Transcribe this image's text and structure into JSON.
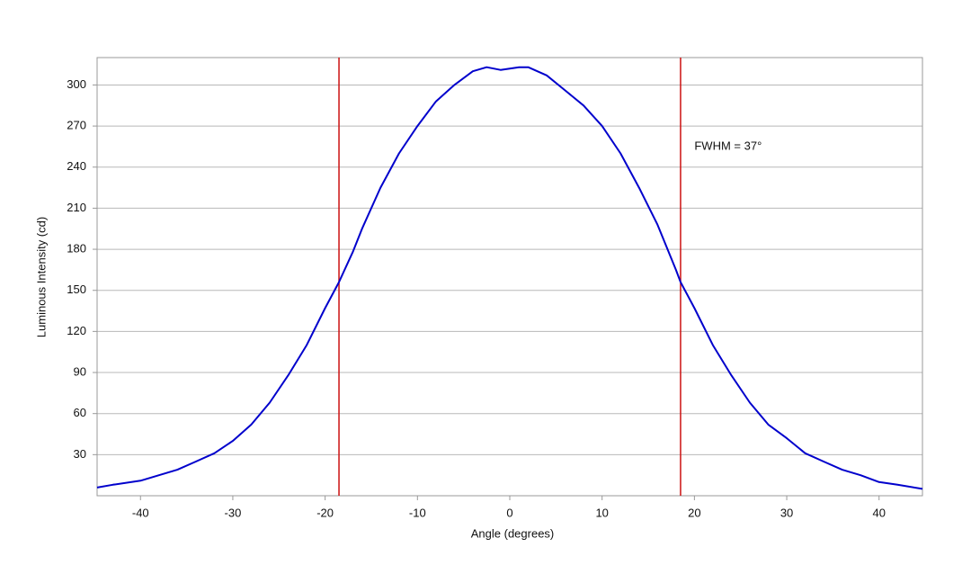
{
  "chart_data": {
    "type": "line",
    "x_label": "Angle (degrees)",
    "y_label": "Luminous Intensity (cd)",
    "x": [
      -44.7,
      -43,
      -40,
      -38,
      -36,
      -34,
      -32,
      -30,
      -28,
      -26,
      -24,
      -22,
      -20,
      -18.5,
      -17,
      -16,
      -14,
      -12,
      -10,
      -8,
      -6,
      -4,
      -2.5,
      -1,
      1,
      2,
      4,
      6,
      8,
      10,
      12,
      14,
      16,
      18,
      18.5,
      20,
      22,
      24,
      26,
      28,
      30,
      32,
      34,
      36,
      38,
      40,
      42,
      44.7
    ],
    "values": [
      6,
      8,
      11,
      15,
      19,
      25,
      31,
      40,
      52,
      68,
      88,
      110,
      137,
      156,
      178,
      195,
      225,
      250,
      270,
      288,
      300,
      310,
      313,
      311,
      313,
      313,
      307,
      296,
      285,
      270,
      250,
      225,
      198,
      165,
      156,
      137,
      110,
      88,
      68,
      52,
      42,
      31,
      25,
      19,
      15,
      10,
      8,
      5
    ],
    "color": "#0000cc",
    "xlim": [
      -44.7,
      44.7
    ],
    "ylim": [
      0,
      320
    ],
    "xticks": [
      -40,
      -30,
      -20,
      -10,
      0,
      10,
      20,
      30,
      40
    ],
    "yticks": [
      30,
      60,
      90,
      120,
      150,
      180,
      210,
      240,
      270,
      300
    ],
    "grid": true,
    "reference_lines": {
      "x": [
        -18.5,
        18.5
      ],
      "color": "#cc1111"
    },
    "annotation": {
      "text": "FWHM = 37°",
      "x": 20,
      "y": 255
    }
  }
}
